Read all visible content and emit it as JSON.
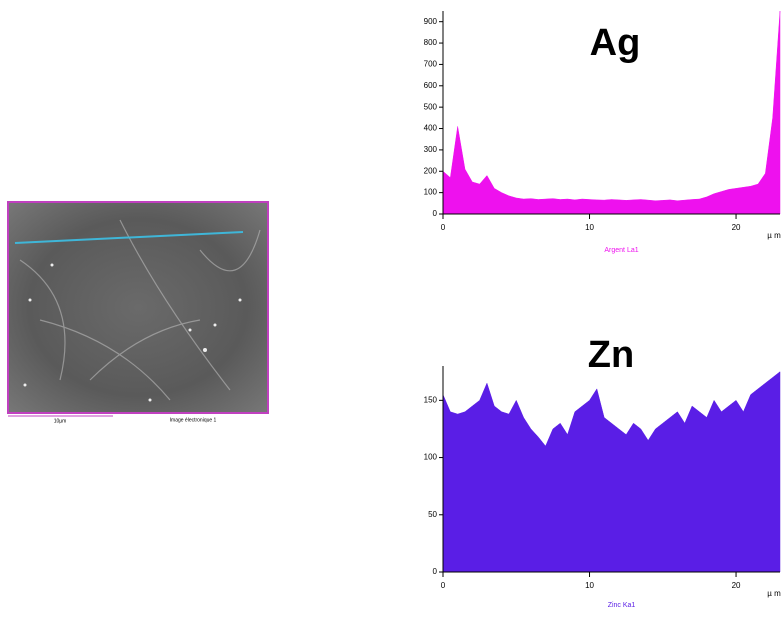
{
  "image": {
    "scale_label": "10µm",
    "caption": "Image électronique 1"
  },
  "chart_data": [
    {
      "type": "area",
      "title": "Ag",
      "x_label": "µ m",
      "x": [
        0,
        0.5,
        1,
        1.5,
        2,
        2.5,
        3,
        3.5,
        4,
        4.5,
        5,
        5.5,
        6,
        6.5,
        7,
        7.5,
        8,
        8.5,
        9,
        9.5,
        10,
        10.5,
        11,
        11.5,
        12,
        12.5,
        13,
        13.5,
        14,
        14.5,
        15,
        15.5,
        16,
        16.5,
        17,
        17.5,
        18,
        18.5,
        19,
        19.5,
        20,
        20.5,
        21,
        21.5,
        22,
        22.5,
        23
      ],
      "series": [
        {
          "name": "Argent  La1",
          "color": "#ee11ee",
          "values": [
            200,
            170,
            410,
            210,
            150,
            140,
            180,
            120,
            100,
            85,
            75,
            70,
            72,
            68,
            70,
            72,
            68,
            70,
            66,
            70,
            68,
            66,
            65,
            68,
            66,
            64,
            66,
            68,
            65,
            62,
            64,
            66,
            62,
            65,
            68,
            70,
            80,
            95,
            105,
            115,
            120,
            125,
            130,
            140,
            190,
            450,
            950
          ]
        }
      ],
      "xlim": [
        0,
        23
      ],
      "xticks": [
        0,
        10,
        20
      ],
      "ylim": [
        0,
        950
      ],
      "yticks": [
        0,
        100,
        200,
        300,
        400,
        500,
        600,
        700,
        800,
        900
      ]
    },
    {
      "type": "area",
      "title": "Zn",
      "x_label": "µ m",
      "x": [
        0,
        0.5,
        1,
        1.5,
        2,
        2.5,
        3,
        3.5,
        4,
        4.5,
        5,
        5.5,
        6,
        6.5,
        7,
        7.5,
        8,
        8.5,
        9,
        9.5,
        10,
        10.5,
        11,
        11.5,
        12,
        12.5,
        13,
        13.5,
        14,
        14.5,
        15,
        15.5,
        16,
        16.5,
        17,
        17.5,
        18,
        18.5,
        19,
        19.5,
        20,
        20.5,
        21,
        21.5,
        22,
        22.5,
        23
      ],
      "series": [
        {
          "name": "Zinc  Ka1",
          "color": "#5a1ee6",
          "values": [
            155,
            140,
            138,
            140,
            145,
            150,
            165,
            145,
            140,
            138,
            150,
            135,
            125,
            118,
            110,
            125,
            130,
            120,
            140,
            145,
            150,
            160,
            135,
            130,
            125,
            120,
            130,
            125,
            115,
            125,
            130,
            135,
            140,
            130,
            145,
            140,
            135,
            150,
            140,
            145,
            150,
            140,
            155,
            160,
            165,
            170,
            175
          ]
        }
      ],
      "xlim": [
        0,
        23
      ],
      "xticks": [
        0,
        10,
        20
      ],
      "ylim": [
        0,
        180
      ],
      "yticks": [
        0,
        50,
        100,
        150
      ]
    }
  ]
}
